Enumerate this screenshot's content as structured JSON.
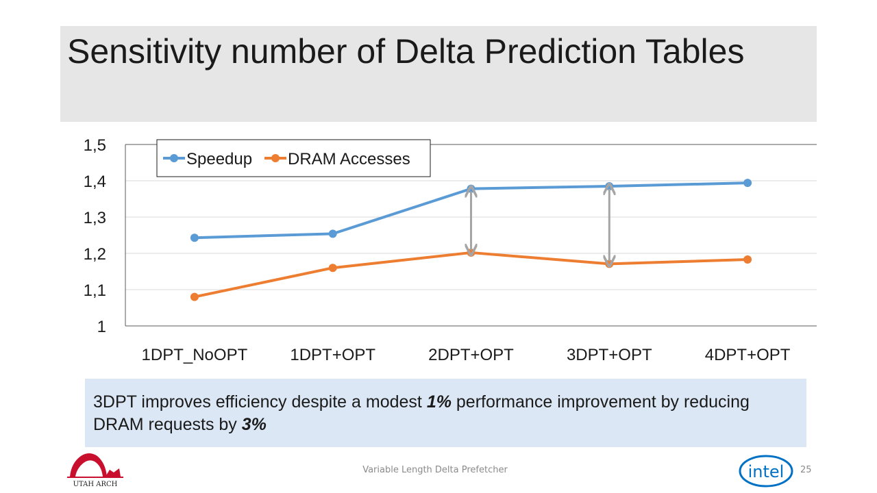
{
  "slide": {
    "title": "Sensitivity number of Delta Prediction Tables",
    "note": {
      "part1": "3DPT improves efficiency despite a modest ",
      "emph1": "1%",
      "part2": " performance improvement by reducing DRAM requests by ",
      "emph2": "3%"
    },
    "footer": "Variable Length Delta Prefetcher",
    "page_number": "25",
    "logo_left_text": "UTAH ARCH",
    "logo_right_text": "intel"
  },
  "chart_data": {
    "type": "line",
    "categories": [
      "1DPT_NoOPT",
      "1DPT+OPT",
      "2DPT+OPT",
      "3DPT+OPT",
      "4DPT+OPT"
    ],
    "ylim": [
      1,
      1.5
    ],
    "yticks": [
      "1",
      "1,1",
      "1,2",
      "1,3",
      "1,4",
      "1,5"
    ],
    "grid": true,
    "legend_position": "top-left",
    "series": [
      {
        "name": "Speedup",
        "color": "#5b9bd5",
        "values": [
          1.243,
          1.254,
          1.378,
          1.385,
          1.394
        ]
      },
      {
        "name": "DRAM Accesses",
        "color": "#ed7d31",
        "values": [
          1.08,
          1.16,
          1.202,
          1.171,
          1.183
        ]
      }
    ],
    "arrows": [
      {
        "category": "2DPT+OPT",
        "from": 1.378,
        "to": 1.202
      },
      {
        "category": "3DPT+OPT",
        "from": 1.385,
        "to": 1.171
      }
    ],
    "arrow_color": "#a5a5a5"
  }
}
